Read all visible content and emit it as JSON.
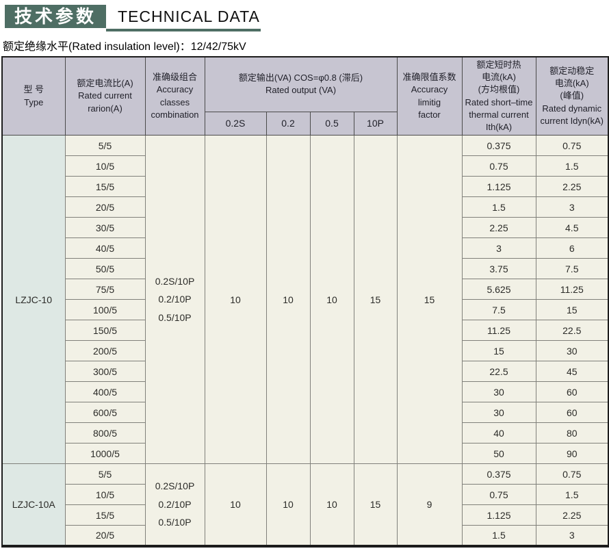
{
  "page": {
    "title_cn": "技术参数",
    "title_en": "TECHNICAL DATA",
    "subtitle": "额定绝缘水平(Rated insulation level)：12/42/75kV"
  },
  "colors": {
    "accent_green": "#4e6e64",
    "header_bg": "#c7c5d1",
    "body_bg": "#f2f1e6",
    "type_col_bg": "#dee8e4"
  },
  "table": {
    "headers": {
      "type": "型 号\nType",
      "ratio": "额定电流比(A)\nRated current\nrarion(A)",
      "classes": "准确级组合\nAccuracy\nclasses\ncombination",
      "output_group": "额定输出(VA) COS=φ0.8 (滞后)\nRated output (VA)",
      "factor": "准确限值系数\nAccuracy\nlimitig\nfactor",
      "thermal": "额定短时热\n电流(kA)\n(方均根值)\nRated short–time\nthermal current\nIth(kA)",
      "dynamic": "额定动稳定\n电流(kA)\n(峰值)\nRated dynamic\ncurrent Idyn(kA)"
    },
    "output_subcols": [
      "0.2S",
      "0.2",
      "0.5",
      "10P"
    ],
    "sections": [
      {
        "type": "LZJC-10",
        "accuracy_classes": "0.2S/10P\n0.2/10P\n0.5/10P",
        "outputs": [
          "10",
          "10",
          "10",
          "15"
        ],
        "accuracy_limit_factor": "15",
        "rows": [
          {
            "ratio": "5/5",
            "thermal": "0.375",
            "dynamic": "0.75"
          },
          {
            "ratio": "10/5",
            "thermal": "0.75",
            "dynamic": "1.5"
          },
          {
            "ratio": "15/5",
            "thermal": "1.125",
            "dynamic": "2.25"
          },
          {
            "ratio": "20/5",
            "thermal": "1.5",
            "dynamic": "3"
          },
          {
            "ratio": "30/5",
            "thermal": "2.25",
            "dynamic": "4.5"
          },
          {
            "ratio": "40/5",
            "thermal": "3",
            "dynamic": "6"
          },
          {
            "ratio": "50/5",
            "thermal": "3.75",
            "dynamic": "7.5"
          },
          {
            "ratio": "75/5",
            "thermal": "5.625",
            "dynamic": "11.25"
          },
          {
            "ratio": "100/5",
            "thermal": "7.5",
            "dynamic": "15"
          },
          {
            "ratio": "150/5",
            "thermal": "11.25",
            "dynamic": "22.5"
          },
          {
            "ratio": "200/5",
            "thermal": "15",
            "dynamic": "30"
          },
          {
            "ratio": "300/5",
            "thermal": "22.5",
            "dynamic": "45"
          },
          {
            "ratio": "400/5",
            "thermal": "30",
            "dynamic": "60"
          },
          {
            "ratio": "600/5",
            "thermal": "30",
            "dynamic": "60"
          },
          {
            "ratio": "800/5",
            "thermal": "40",
            "dynamic": "80"
          },
          {
            "ratio": "1000/5",
            "thermal": "50",
            "dynamic": "90"
          }
        ]
      },
      {
        "type": "LZJC-10A",
        "accuracy_classes": "0.2S/10P\n0.2/10P\n0.5/10P",
        "outputs": [
          "10",
          "10",
          "10",
          "15"
        ],
        "accuracy_limit_factor": "9",
        "rows": [
          {
            "ratio": "5/5",
            "thermal": "0.375",
            "dynamic": "0.75"
          },
          {
            "ratio": "10/5",
            "thermal": "0.75",
            "dynamic": "1.5"
          },
          {
            "ratio": "15/5",
            "thermal": "1.125",
            "dynamic": "2.25"
          },
          {
            "ratio": "20/5",
            "thermal": "1.5",
            "dynamic": "3"
          }
        ]
      }
    ]
  }
}
